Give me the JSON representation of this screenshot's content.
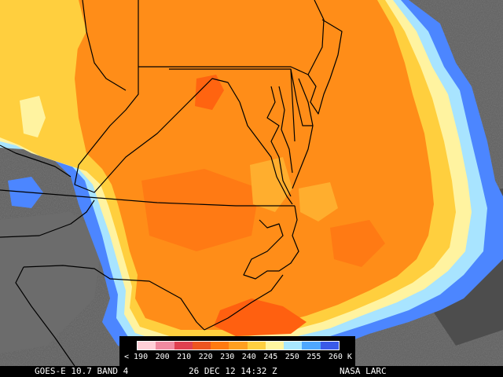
{
  "product": {
    "caption_left": "GOES-E 10.7 BAND 4",
    "caption_datetime": "26 DEC 12 14:32 Z",
    "caption_source": "NASA LARC"
  },
  "legend": {
    "unit": "K",
    "labels": [
      "< 190",
      "200",
      "210",
      "220",
      "230",
      "240",
      "245",
      "250",
      "255",
      "260 K"
    ],
    "colors": [
      "#ffd0d8",
      "#f08aa0",
      "#e04050",
      "#ee5520",
      "#ff7a10",
      "#ff9f20",
      "#ffd040",
      "#fff6a0",
      "#a8e8ff",
      "#4ea8ff",
      "#3a5ae8"
    ]
  },
  "palette": {
    "background_gray": "#5a5a5a",
    "cloud_orange": "#ff8f1a",
    "core_dark_orange": "#ff6410",
    "yellow": "#ffd040",
    "pale": "#fff3a0",
    "cyan": "#a8e8ff",
    "blue": "#4e86ff",
    "boundary_line": "#000000"
  }
}
